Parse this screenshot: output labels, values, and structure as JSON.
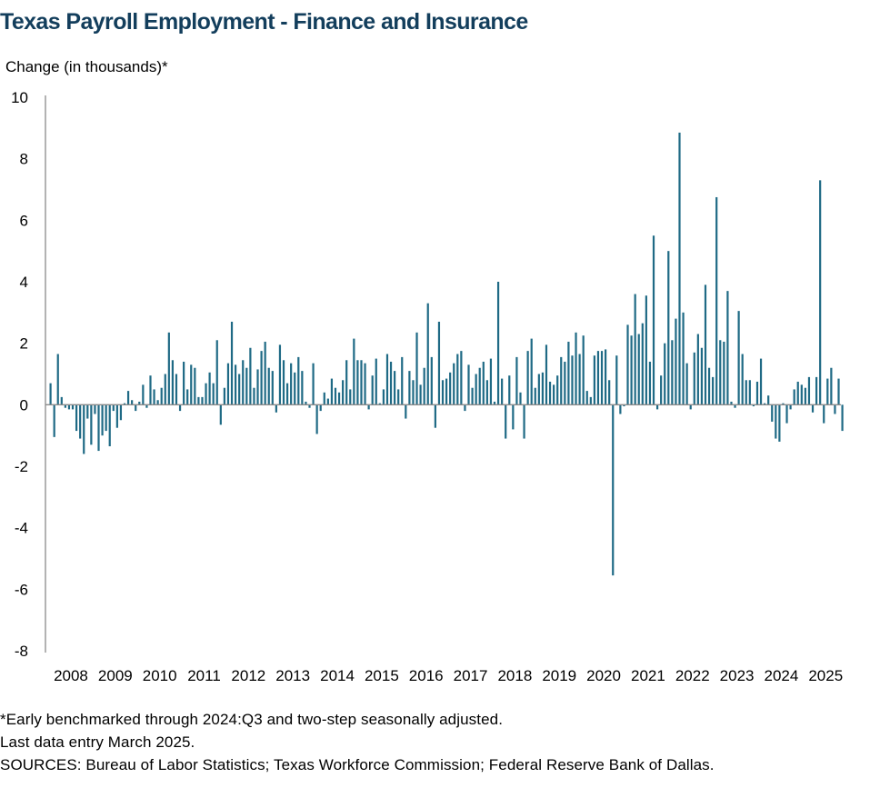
{
  "colors": {
    "bar": "#1f6a85",
    "title": "#133e5c",
    "axis": "#8a8a8a"
  },
  "footnotes": {
    "line1": "*Early benchmarked through 2024:Q3 and two-step seasonally adjusted.",
    "line2": "Last data entry March 2025.",
    "line3": "SOURCES: Bureau of Labor Statistics; Texas Workforce Commission; Federal Reserve Bank of Dallas."
  },
  "chart_data": {
    "type": "bar",
    "title": "Texas Payroll Employment - Finance and Insurance",
    "ylabel": "Change (in thousands)*",
    "xlabel": "",
    "ylim": [
      -8,
      10
    ],
    "yticks": [
      10,
      8,
      6,
      4,
      2,
      0,
      -2,
      -4,
      -6,
      -8
    ],
    "xtick_labels": [
      "2008",
      "2009",
      "2010",
      "2011",
      "2012",
      "2013",
      "2014",
      "2015",
      "2016",
      "2017",
      "2018",
      "2019",
      "2020",
      "2021",
      "2022",
      "2023",
      "2024",
      "2025"
    ],
    "grid": false,
    "legend": "none",
    "start": "2008-01",
    "frequency": "monthly",
    "values": [
      0.7,
      -1.05,
      1.65,
      0.25,
      -0.1,
      -0.15,
      -0.15,
      -0.85,
      -1.1,
      -1.6,
      -0.45,
      -1.3,
      -0.3,
      -1.5,
      -1.0,
      -0.85,
      -1.35,
      -0.2,
      -0.75,
      -0.5,
      0.05,
      0.45,
      0.15,
      -0.2,
      0.1,
      0.65,
      -0.1,
      0.95,
      0.5,
      0.15,
      0.55,
      1.0,
      2.35,
      1.45,
      1.0,
      -0.2,
      1.4,
      0.5,
      1.3,
      1.2,
      0.25,
      0.25,
      0.7,
      1.05,
      0.7,
      2.1,
      -0.65,
      0.55,
      1.35,
      2.7,
      1.3,
      1.0,
      1.45,
      1.2,
      1.85,
      0.55,
      1.15,
      1.75,
      2.05,
      1.2,
      1.1,
      -0.25,
      1.95,
      1.45,
      0.7,
      1.35,
      1.05,
      1.55,
      1.1,
      0.1,
      -0.1,
      1.35,
      -0.95,
      -0.2,
      0.4,
      0.2,
      0.85,
      0.55,
      0.4,
      0.8,
      1.45,
      0.5,
      2.15,
      1.45,
      1.45,
      1.35,
      -0.15,
      0.95,
      1.5,
      0.05,
      0.5,
      1.65,
      1.4,
      1.1,
      0.5,
      1.55,
      -0.45,
      1.1,
      0.8,
      2.35,
      0.65,
      1.2,
      3.3,
      1.55,
      -0.75,
      2.7,
      0.8,
      0.85,
      1.05,
      1.35,
      1.65,
      1.75,
      -0.2,
      1.3,
      0.55,
      1.0,
      1.2,
      1.4,
      0.8,
      1.5,
      0.1,
      4.0,
      0.85,
      -1.1,
      0.95,
      -0.8,
      1.55,
      0.4,
      -1.1,
      1.75,
      2.15,
      0.55,
      1.0,
      1.05,
      1.95,
      0.75,
      0.65,
      0.95,
      1.55,
      1.4,
      2.05,
      1.6,
      2.35,
      1.65,
      2.25,
      0.45,
      0.25,
      1.6,
      1.75,
      1.75,
      1.8,
      0.8,
      -5.55,
      1.6,
      -0.3,
      -0.05,
      2.6,
      2.25,
      3.6,
      2.3,
      2.65,
      3.55,
      1.4,
      5.5,
      -0.15,
      0.95,
      2.0,
      5.0,
      2.1,
      2.8,
      8.85,
      3.0,
      1.35,
      -0.15,
      1.7,
      2.3,
      1.85,
      3.9,
      1.2,
      0.9,
      6.75,
      2.1,
      2.05,
      3.7,
      0.1,
      -0.1,
      3.05,
      1.65,
      0.8,
      0.8,
      -0.05,
      0.75,
      1.5,
      0.05,
      0.3,
      -0.55,
      -1.1,
      -1.2,
      0.05,
      -0.6,
      -0.15,
      0.5,
      0.75,
      0.65,
      0.55,
      0.9,
      -0.25,
      0.9,
      7.3,
      -0.6,
      0.85,
      1.2,
      -0.3,
      0.85,
      -0.85
    ]
  }
}
